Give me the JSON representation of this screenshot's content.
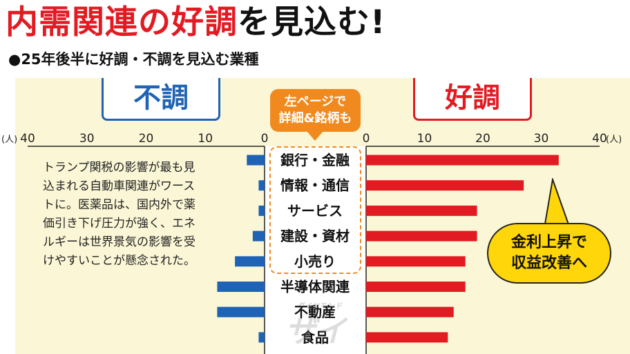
{
  "title": {
    "part1": "内需関連の好調",
    "part2": "を見込む!"
  },
  "subtitle": "●25年後半に好調・不調を見込む業種",
  "headers": {
    "left": "不調",
    "right": "好調"
  },
  "note": {
    "line1": "左ページで",
    "line2": "詳細&銘柄も"
  },
  "description": "トランプ関税の影響が最も見込まれる自動車関連がワーストに。医薬品は、国内外で薬価引き下げ圧力が強く、エネルギーは世界景気の影響を受けやすいことが懸念された。",
  "callout": {
    "line1": "金利上昇で",
    "line2": "収益改善へ"
  },
  "watermark": {
    "small": "ダイヤモンド",
    "big": "ザイ"
  },
  "colors": {
    "bad": "#1e63b5",
    "good": "#e21b23",
    "accent": "#f08a1e",
    "callout": "#ffd60a"
  },
  "chart_data": {
    "type": "bar",
    "categories": [
      "銀行・金融",
      "情報・通信",
      "サービス",
      "建設・資材",
      "小売り",
      "半導体関連",
      "不動産",
      "食品"
    ],
    "series": [
      {
        "name": "不調",
        "values": [
          3,
          1,
          1,
          2,
          5,
          8,
          8,
          1
        ]
      },
      {
        "name": "好調",
        "values": [
          33,
          27,
          19,
          19,
          17,
          17,
          15,
          14
        ]
      }
    ],
    "left_ticks": [
      "40",
      "30",
      "20",
      "10",
      "0"
    ],
    "right_ticks": [
      "0",
      "10",
      "20",
      "30",
      "40"
    ],
    "unit_left": "(人)",
    "unit_right": "(人)",
    "xlim": [
      0,
      40
    ]
  }
}
